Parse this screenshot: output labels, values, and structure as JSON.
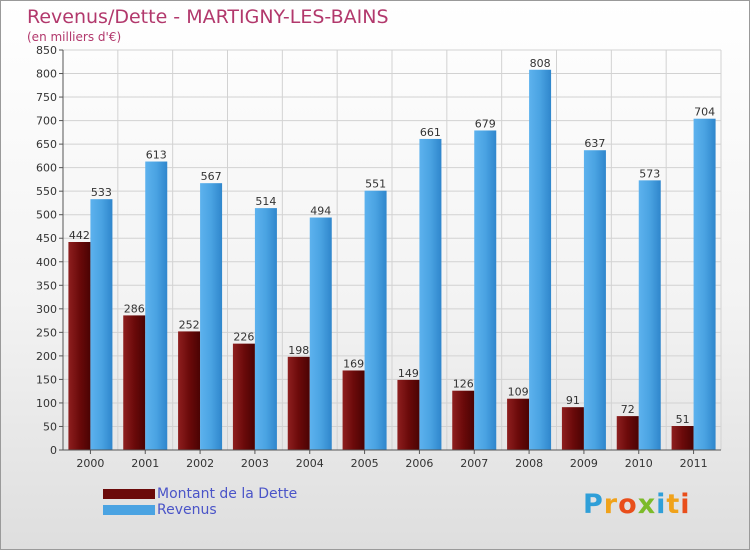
{
  "header": {
    "title": "Revenus/Dette - MARTIGNY-LES-BAINS",
    "subtitle": "(en milliers d'€)"
  },
  "colors": {
    "dette": "#6b0a0a",
    "revenus": "#4aa3e2",
    "title": "#b2386c",
    "legend_text": "#4a54c8"
  },
  "chart_data": {
    "type": "bar",
    "categories": [
      "2000",
      "2001",
      "2002",
      "2003",
      "2004",
      "2005",
      "2006",
      "2007",
      "2008",
      "2009",
      "2010",
      "2011"
    ],
    "series": [
      {
        "name": "Montant de la Dette",
        "values": [
          442,
          286,
          252,
          226,
          198,
          169,
          149,
          126,
          109,
          91,
          72,
          51
        ]
      },
      {
        "name": "Revenus",
        "values": [
          533,
          613,
          567,
          514,
          494,
          551,
          661,
          679,
          808,
          637,
          573,
          704
        ]
      }
    ],
    "ylim": [
      0,
      850
    ],
    "yticks": [
      0,
      50,
      100,
      150,
      200,
      250,
      300,
      350,
      400,
      450,
      500,
      550,
      600,
      650,
      700,
      750,
      800,
      850
    ],
    "grid": true,
    "legend_position": "bottom-left"
  },
  "legend": {
    "items": [
      "Montant de la Dette",
      "Revenus"
    ]
  },
  "logo": {
    "letters": [
      "P",
      "r",
      "o",
      "x",
      "i",
      "t",
      "i"
    ]
  }
}
